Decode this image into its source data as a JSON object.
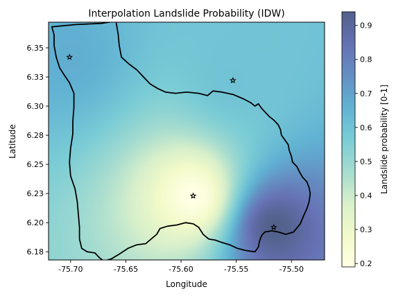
{
  "chart_data": {
    "type": "heatmap",
    "title": "Interpolation Landslide Probability (IDW)",
    "xlabel": "Longitude",
    "ylabel": "Latitude",
    "xlim": [
      -75.72,
      -75.47
    ],
    "ylim": [
      6.168,
      6.372
    ],
    "x_ticks": [
      -75.7,
      -75.65,
      -75.6,
      -75.55,
      -75.5
    ],
    "x_tick_labels": [
      "-75.70",
      "-75.65",
      "-75.60",
      "-75.55",
      "-75.50"
    ],
    "y_ticks": [
      6.175,
      6.2,
      6.225,
      6.25,
      6.275,
      6.3,
      6.325,
      6.35
    ],
    "y_tick_labels": [
      "6.18",
      "6.20",
      "6.23",
      "6.25",
      "6.28",
      "6.30",
      "6.33",
      "6.35"
    ],
    "colorbar": {
      "label": "Landslide probability [0-1]",
      "range": [
        0.19,
        0.94
      ],
      "ticks": [
        0.2,
        0.3,
        0.4,
        0.5,
        0.6,
        0.7,
        0.8,
        0.9
      ],
      "tick_labels": [
        "0.2",
        "0.3",
        "0.4",
        "0.5",
        "0.6",
        "0.7",
        "0.8",
        "0.9"
      ],
      "colormap": [
        "#ffffd9",
        "#edf8b1",
        "#c7e9b4",
        "#7fcdbb",
        "#41b6c4",
        "#1d91c0",
        "#225ea8",
        "#253494",
        "#081d58"
      ],
      "alpha": 0.7
    },
    "points": [
      {
        "x": -75.701,
        "y": 6.342,
        "value": 0.67
      },
      {
        "x": -75.553,
        "y": 6.322,
        "value": 0.6
      },
      {
        "x": -75.589,
        "y": 6.223,
        "value": 0.19
      },
      {
        "x": -75.516,
        "y": 6.196,
        "value": 0.94
      }
    ],
    "boundary": [
      [
        -75.717,
        6.368
      ],
      [
        -75.695,
        6.37
      ],
      [
        -75.672,
        6.371
      ],
      [
        -75.659,
        6.373
      ],
      [
        -75.657,
        6.362
      ],
      [
        -75.656,
        6.352
      ],
      [
        -75.654,
        6.342
      ],
      [
        -75.647,
        6.336
      ],
      [
        -75.64,
        6.331
      ],
      [
        -75.634,
        6.325
      ],
      [
        -75.628,
        6.319
      ],
      [
        -75.621,
        6.315
      ],
      [
        -75.614,
        6.312
      ],
      [
        -75.605,
        6.311
      ],
      [
        -75.595,
        6.312
      ],
      [
        -75.584,
        6.311
      ],
      [
        -75.576,
        6.309
      ],
      [
        -75.571,
        6.313
      ],
      [
        -75.563,
        6.312
      ],
      [
        -75.553,
        6.31
      ],
      [
        -75.543,
        6.306
      ],
      [
        -75.537,
        6.303
      ],
      [
        -75.533,
        6.3
      ],
      [
        -75.53,
        6.302
      ],
      [
        -75.527,
        6.298
      ],
      [
        -75.523,
        6.294
      ],
      [
        -75.52,
        6.291
      ],
      [
        -75.516,
        6.288
      ],
      [
        -75.512,
        6.284
      ],
      [
        -75.51,
        6.28
      ],
      [
        -75.509,
        6.275
      ],
      [
        -75.506,
        6.271
      ],
      [
        -75.503,
        6.267
      ],
      [
        -75.502,
        6.262
      ],
      [
        -75.5,
        6.257
      ],
      [
        -75.499,
        6.252
      ],
      [
        -75.495,
        6.248
      ],
      [
        -75.493,
        6.244
      ],
      [
        -75.49,
        6.239
      ],
      [
        -75.486,
        6.235
      ],
      [
        -75.484,
        6.23
      ],
      [
        -75.483,
        6.225
      ],
      [
        -75.484,
        6.218
      ],
      [
        -75.486,
        6.212
      ],
      [
        -75.489,
        6.206
      ],
      [
        -75.492,
        6.199
      ],
      [
        -75.498,
        6.192
      ],
      [
        -75.505,
        6.19
      ],
      [
        -75.512,
        6.192
      ],
      [
        -75.518,
        6.193
      ],
      [
        -75.524,
        6.192
      ],
      [
        -75.527,
        6.189
      ],
      [
        -75.529,
        6.184
      ],
      [
        -75.53,
        6.179
      ],
      [
        -75.533,
        6.175
      ],
      [
        -75.541,
        6.176
      ],
      [
        -75.549,
        6.178
      ],
      [
        -75.556,
        6.181
      ],
      [
        -75.563,
        6.183
      ],
      [
        -75.569,
        6.185
      ],
      [
        -75.575,
        6.186
      ],
      [
        -75.58,
        6.19
      ],
      [
        -75.584,
        6.196
      ],
      [
        -75.589,
        6.199
      ],
      [
        -75.596,
        6.2
      ],
      [
        -75.604,
        6.198
      ],
      [
        -75.612,
        6.197
      ],
      [
        -75.619,
        6.195
      ],
      [
        -75.622,
        6.19
      ],
      [
        -75.627,
        6.186
      ],
      [
        -75.632,
        6.182
      ],
      [
        -75.64,
        6.181
      ],
      [
        -75.648,
        6.178
      ],
      [
        -75.656,
        6.173
      ],
      [
        -75.663,
        6.169
      ],
      [
        -75.67,
        6.167
      ],
      [
        -75.674,
        6.17
      ],
      [
        -75.678,
        6.174
      ],
      [
        -75.685,
        6.175
      ],
      [
        -75.69,
        6.178
      ],
      [
        -75.692,
        6.186
      ],
      [
        -75.692,
        6.196
      ],
      [
        -75.693,
        6.207
      ],
      [
        -75.694,
        6.218
      ],
      [
        -75.696,
        6.229
      ],
      [
        -75.7,
        6.24
      ],
      [
        -75.701,
        6.252
      ],
      [
        -75.7,
        6.264
      ],
      [
        -75.698,
        6.276
      ],
      [
        -75.698,
        6.287
      ],
      [
        -75.697,
        6.299
      ],
      [
        -75.697,
        6.311
      ],
      [
        -75.701,
        6.32
      ],
      [
        -75.706,
        6.327
      ],
      [
        -75.71,
        6.333
      ],
      [
        -75.713,
        6.342
      ],
      [
        -75.715,
        6.352
      ],
      [
        -75.715,
        6.361
      ],
      [
        -75.717,
        6.368
      ]
    ]
  }
}
